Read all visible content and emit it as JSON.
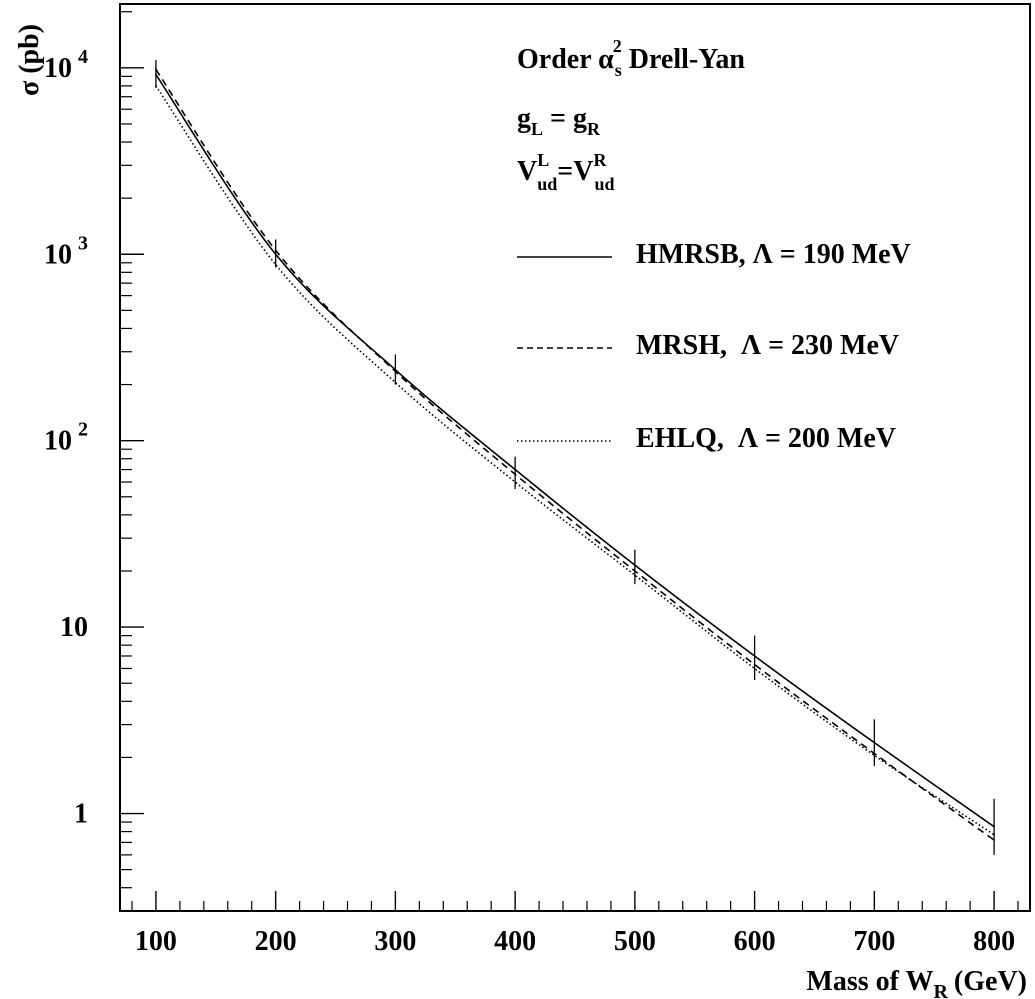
{
  "chart_data": {
    "type": "line",
    "xlabel_main": "Mass of W",
    "xlabel_sub": "R",
    "xlabel_unit": "(GeV)",
    "ylabel": "σ (pb)",
    "xlim": [
      70,
      830
    ],
    "ylim": [
      0.3,
      22000
    ],
    "yscale": "log",
    "grid": false,
    "legend_position": "top-right",
    "x_ticks": [
      {
        "value": 100,
        "label": "100"
      },
      {
        "value": 200,
        "label": "200"
      },
      {
        "value": 300,
        "label": "300"
      },
      {
        "value": 400,
        "label": "400"
      },
      {
        "value": 500,
        "label": "500"
      },
      {
        "value": 600,
        "label": "600"
      },
      {
        "value": 700,
        "label": "700"
      },
      {
        "value": 800,
        "label": "800"
      }
    ],
    "y_ticks": [
      {
        "value": 10000,
        "base": "10",
        "exp": "4"
      },
      {
        "value": 1000,
        "base": "10",
        "exp": "3"
      },
      {
        "value": 100,
        "base": "10",
        "exp": "2"
      },
      {
        "value": 10,
        "base": "10",
        "exp": ""
      },
      {
        "value": 1,
        "base": "1",
        "exp": ""
      }
    ],
    "annotations": {
      "line1_prefix": "Order α",
      "line1_sup": "2",
      "line1_sub": "s",
      "line1_suffix": " Drell-Yan",
      "line2_a": "g",
      "line2_a_sub": "L",
      "line2_eq": " = g",
      "line2_b_sub": "R",
      "line3_a": "V",
      "line3_a_sup": "L",
      "line3_a_sub": "ud",
      "line3_eq": "=V",
      "line3_b_sup": "R",
      "line3_b_sub": "ud"
    },
    "x": [
      100,
      200,
      300,
      400,
      500,
      600,
      700,
      800
    ],
    "series": [
      {
        "name": "HMRSB, Λ = 190 MeV",
        "dash": "solid",
        "values": [
          9200,
          1000,
          240,
          70,
          21.5,
          7.0,
          2.4,
          0.85
        ]
      },
      {
        "name": "MRSH,  Λ = 230 MeV",
        "dash": "dashed",
        "values": [
          9800,
          1050,
          235,
          66,
          20,
          6.3,
          2.1,
          0.72
        ]
      },
      {
        "name": "EHLQ,  Λ = 200 MeV",
        "dash": "dotted",
        "values": [
          8000,
          880,
          205,
          60,
          19,
          6.0,
          2.05,
          0.77
        ]
      }
    ],
    "error_bars": [
      {
        "x": 100,
        "low": 7800,
        "high": 11000
      },
      {
        "x": 200,
        "low": 850,
        "high": 1200
      },
      {
        "x": 300,
        "low": 200,
        "high": 290
      },
      {
        "x": 400,
        "low": 55,
        "high": 82
      },
      {
        "x": 500,
        "low": 17,
        "high": 26
      },
      {
        "x": 600,
        "low": 5.2,
        "high": 9.0
      },
      {
        "x": 700,
        "low": 1.8,
        "high": 3.2
      },
      {
        "x": 800,
        "low": 0.6,
        "high": 1.2
      }
    ]
  }
}
